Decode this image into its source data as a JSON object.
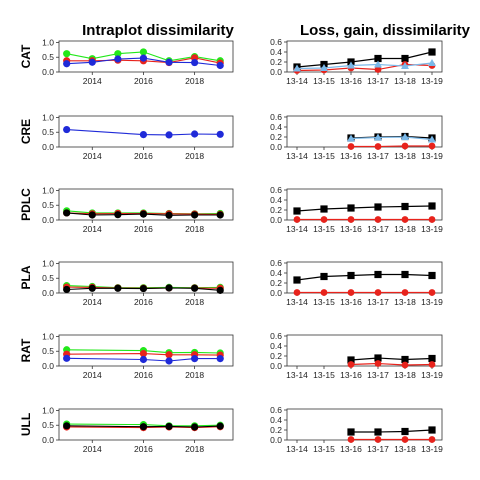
{
  "titles": {
    "left": "Intraplot dissimilarity",
    "right": "Loss, gain, dissimilarity"
  },
  "colors": {
    "red": "#e8231c",
    "green": "#22e81a",
    "blue": "#1f2ad8",
    "black": "#000000",
    "lightblue": "#7ab8e8"
  },
  "chart_data": [
    {
      "type": "line",
      "panel": "left",
      "row_label": "CAT",
      "x_ticks": [
        2014,
        2016,
        2018
      ],
      "y_ticks": [
        0.0,
        0.5,
        1.0
      ],
      "ylim": [
        0,
        1.05
      ],
      "xlim": [
        2012.7,
        2019.5
      ],
      "series": [
        {
          "color": "green",
          "x": [
            2013,
            2014,
            2015,
            2016,
            2017,
            2018,
            2019
          ],
          "y": [
            0.62,
            0.45,
            0.62,
            0.68,
            0.38,
            0.52,
            0.38
          ]
        },
        {
          "color": "red",
          "x": [
            2013,
            2014,
            2015,
            2016,
            2017,
            2018,
            2019
          ],
          "y": [
            0.38,
            0.38,
            0.4,
            0.38,
            0.32,
            0.48,
            0.3
          ]
        },
        {
          "color": "blue",
          "x": [
            2013,
            2014,
            2015,
            2016,
            2017,
            2018,
            2019
          ],
          "y": [
            0.28,
            0.33,
            0.44,
            0.47,
            0.33,
            0.32,
            0.22
          ]
        }
      ]
    },
    {
      "type": "line",
      "panel": "left",
      "row_label": "CRE",
      "x_ticks": [
        2014,
        2016,
        2018
      ],
      "y_ticks": [
        0.0,
        0.5,
        1.0
      ],
      "ylim": [
        0,
        1.05
      ],
      "xlim": [
        2012.7,
        2019.5
      ],
      "series": [
        {
          "color": "blue",
          "x": [
            2013,
            2016,
            2017,
            2018,
            2019
          ],
          "y": [
            0.59,
            0.42,
            0.41,
            0.44,
            0.43
          ]
        }
      ]
    },
    {
      "type": "line",
      "panel": "left",
      "row_label": "PDLC",
      "x_ticks": [
        2014,
        2016,
        2018
      ],
      "y_ticks": [
        0.0,
        0.5,
        1.0
      ],
      "ylim": [
        0,
        1.05
      ],
      "xlim": [
        2012.7,
        2019.5
      ],
      "series": [
        {
          "color": "green",
          "x": [
            2013,
            2014,
            2015,
            2016,
            2017,
            2018,
            2019
          ],
          "y": [
            0.31,
            0.24,
            0.24,
            0.24,
            0.22,
            0.21,
            0.22
          ]
        },
        {
          "color": "red",
          "x": [
            2013,
            2014,
            2015,
            2016,
            2017,
            2018,
            2019
          ],
          "y": [
            0.24,
            0.21,
            0.22,
            0.22,
            0.21,
            0.2,
            0.19
          ]
        },
        {
          "color": "black",
          "x": [
            2013,
            2014,
            2015,
            2016,
            2017,
            2018,
            2019
          ],
          "y": [
            0.24,
            0.17,
            0.18,
            0.2,
            0.16,
            0.17,
            0.17
          ]
        }
      ]
    },
    {
      "type": "line",
      "panel": "left",
      "row_label": "PLA",
      "x_ticks": [
        2014,
        2016,
        2018
      ],
      "y_ticks": [
        0.0,
        0.5,
        1.0
      ],
      "ylim": [
        0,
        1.05
      ],
      "xlim": [
        2012.7,
        2019.5
      ],
      "series": [
        {
          "color": "green",
          "x": [
            2013,
            2014,
            2015,
            2016,
            2017,
            2018,
            2019
          ],
          "y": [
            0.25,
            0.22,
            0.18,
            0.18,
            0.19,
            0.18,
            0.19
          ]
        },
        {
          "color": "red",
          "x": [
            2013,
            2014,
            2015,
            2016,
            2017,
            2018,
            2019
          ],
          "y": [
            0.2,
            0.19,
            0.17,
            0.16,
            0.17,
            0.17,
            0.16
          ]
        },
        {
          "color": "black",
          "x": [
            2013,
            2014,
            2015,
            2016,
            2017,
            2018,
            2019
          ],
          "y": [
            0.12,
            0.16,
            0.16,
            0.15,
            0.17,
            0.16,
            0.09
          ]
        }
      ]
    },
    {
      "type": "line",
      "panel": "left",
      "row_label": "RAT",
      "x_ticks": [
        2014,
        2016,
        2018
      ],
      "y_ticks": [
        0.0,
        0.5,
        1.0
      ],
      "ylim": [
        0,
        1.05
      ],
      "xlim": [
        2012.7,
        2019.5
      ],
      "series": [
        {
          "color": "green",
          "x": [
            2013,
            2016,
            2017,
            2018,
            2019
          ],
          "y": [
            0.55,
            0.52,
            0.45,
            0.46,
            0.44
          ]
        },
        {
          "color": "red",
          "x": [
            2013,
            2016,
            2017,
            2018,
            2019
          ],
          "y": [
            0.4,
            0.42,
            0.38,
            0.38,
            0.37
          ]
        },
        {
          "color": "blue",
          "x": [
            2013,
            2016,
            2017,
            2018,
            2019
          ],
          "y": [
            0.26,
            0.22,
            0.17,
            0.25,
            0.25
          ]
        }
      ]
    },
    {
      "type": "line",
      "panel": "left",
      "row_label": "ULL",
      "x_ticks": [
        2014,
        2016,
        2018
      ],
      "y_ticks": [
        0.0,
        0.5,
        1.0
      ],
      "ylim": [
        0,
        1.05
      ],
      "xlim": [
        2012.7,
        2019.5
      ],
      "series": [
        {
          "color": "green",
          "x": [
            2013,
            2016,
            2017,
            2018,
            2019
          ],
          "y": [
            0.54,
            0.52,
            0.48,
            0.48,
            0.5
          ]
        },
        {
          "color": "red",
          "x": [
            2013,
            2016,
            2017,
            2018,
            2019
          ],
          "y": [
            0.44,
            0.42,
            0.44,
            0.42,
            0.45
          ]
        },
        {
          "color": "black",
          "x": [
            2013,
            2016,
            2017,
            2018,
            2019
          ],
          "y": [
            0.48,
            0.45,
            0.46,
            0.44,
            0.47
          ]
        }
      ]
    },
    {
      "type": "line",
      "panel": "right",
      "row_label": "CAT",
      "categories": [
        "13-14",
        "13-15",
        "13-16",
        "13-17",
        "13-18",
        "13-19"
      ],
      "y_ticks": [
        0.0,
        0.2,
        0.4,
        0.6
      ],
      "ylim": [
        0,
        0.62
      ],
      "series": [
        {
          "color": "black",
          "marker": "square",
          "values": [
            0.1,
            0.15,
            0.2,
            0.27,
            0.27,
            0.4
          ]
        },
        {
          "color": "red",
          "marker": "circle",
          "values": [
            0.03,
            0.04,
            0.08,
            0.05,
            0.15,
            0.13
          ]
        },
        {
          "color": "lightblue",
          "marker": "triangle",
          "values": [
            0.07,
            0.08,
            0.13,
            0.15,
            0.12,
            0.18
          ]
        }
      ]
    },
    {
      "type": "line",
      "panel": "right",
      "row_label": "CRE",
      "categories": [
        "13-14",
        "13-15",
        "13-16",
        "13-17",
        "13-18",
        "13-19"
      ],
      "y_ticks": [
        0.0,
        0.2,
        0.4,
        0.6
      ],
      "ylim": [
        0,
        0.62
      ],
      "series": [
        {
          "color": "black",
          "marker": "square",
          "values": [
            null,
            null,
            0.18,
            0.2,
            0.21,
            0.18
          ]
        },
        {
          "color": "lightblue",
          "marker": "triangle",
          "values": [
            null,
            null,
            0.17,
            0.19,
            0.2,
            0.15
          ]
        },
        {
          "color": "red",
          "marker": "circle",
          "values": [
            null,
            null,
            0.01,
            0.01,
            0.02,
            0.02
          ]
        }
      ]
    },
    {
      "type": "line",
      "panel": "right",
      "row_label": "PDLC",
      "categories": [
        "13-14",
        "13-15",
        "13-16",
        "13-17",
        "13-18",
        "13-19"
      ],
      "y_ticks": [
        0.0,
        0.2,
        0.4,
        0.6
      ],
      "ylim": [
        0,
        0.62
      ],
      "series": [
        {
          "color": "black",
          "marker": "square",
          "values": [
            0.18,
            0.22,
            0.24,
            0.26,
            0.27,
            0.28
          ]
        },
        {
          "color": "red",
          "marker": "circle",
          "values": [
            0.01,
            0.01,
            0.01,
            0.01,
            0.01,
            0.01
          ]
        }
      ]
    },
    {
      "type": "line",
      "panel": "right",
      "row_label": "PLA",
      "categories": [
        "13-14",
        "13-15",
        "13-16",
        "13-17",
        "13-18",
        "13-19"
      ],
      "y_ticks": [
        0.0,
        0.2,
        0.4,
        0.6
      ],
      "ylim": [
        0,
        0.62
      ],
      "series": [
        {
          "color": "black",
          "marker": "square",
          "values": [
            0.26,
            0.33,
            0.35,
            0.37,
            0.37,
            0.35
          ]
        },
        {
          "color": "red",
          "marker": "circle",
          "values": [
            0.01,
            0.01,
            0.01,
            0.01,
            0.01,
            0.01
          ]
        }
      ]
    },
    {
      "type": "line",
      "panel": "right",
      "row_label": "RAT",
      "categories": [
        "13-14",
        "13-15",
        "13-16",
        "13-17",
        "13-18",
        "13-19"
      ],
      "y_ticks": [
        0.0,
        0.2,
        0.4,
        0.6
      ],
      "ylim": [
        0,
        0.62
      ],
      "series": [
        {
          "color": "black",
          "marker": "square",
          "values": [
            null,
            null,
            0.12,
            0.16,
            0.13,
            0.15
          ]
        },
        {
          "color": "red",
          "marker": "circle",
          "values": [
            null,
            null,
            0.03,
            0.05,
            0.02,
            0.03
          ]
        }
      ]
    },
    {
      "type": "line",
      "panel": "right",
      "row_label": "ULL",
      "categories": [
        "13-14",
        "13-15",
        "13-16",
        "13-17",
        "13-18",
        "13-19"
      ],
      "y_ticks": [
        0.0,
        0.2,
        0.4,
        0.6
      ],
      "ylim": [
        0,
        0.62
      ],
      "series": [
        {
          "color": "black",
          "marker": "square",
          "values": [
            null,
            null,
            0.16,
            0.16,
            0.17,
            0.2
          ]
        },
        {
          "color": "red",
          "marker": "circle",
          "values": [
            null,
            null,
            0.01,
            0.01,
            0.01,
            0.01
          ]
        }
      ]
    }
  ]
}
